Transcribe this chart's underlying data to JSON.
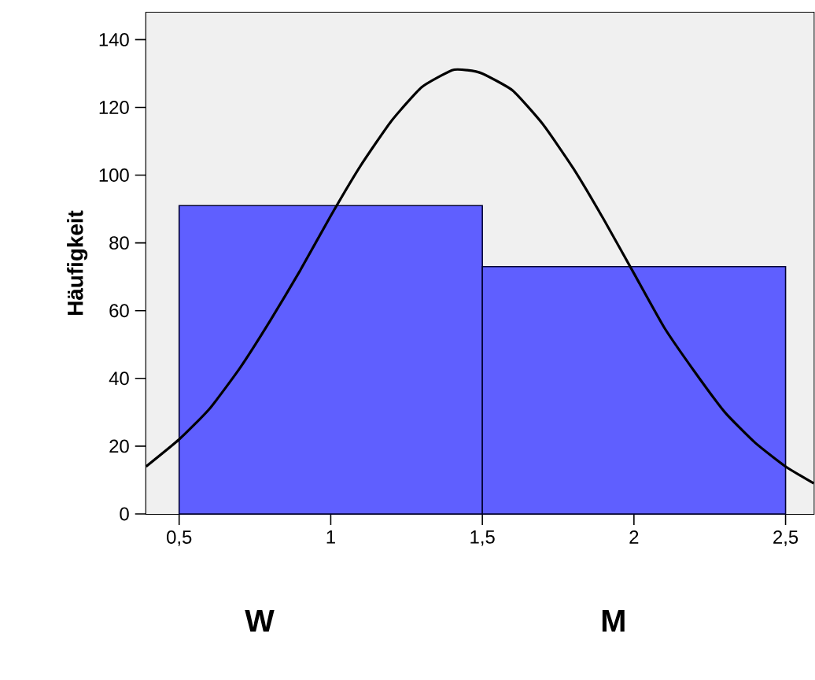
{
  "chart_data": {
    "type": "histogram",
    "ylabel": "Häufigkeit",
    "annotations": [
      "W",
      "M"
    ],
    "xlim": [
      0.391,
      2.593
    ],
    "ylim": [
      0,
      148
    ],
    "xticks": [
      {
        "value": 0.5,
        "label": "0,5"
      },
      1,
      {
        "value": 1.5,
        "label": "1,5"
      },
      2,
      {
        "value": 2.5,
        "label": "2,5"
      }
    ],
    "yticks": [
      0,
      20,
      40,
      60,
      80,
      100,
      120,
      140
    ],
    "series": [
      {
        "color": "#5f5fff",
        "bins": [
          0.5,
          1.5,
          2.5
        ],
        "values": [
          91,
          73
        ]
      },
      {
        "type": "line",
        "color": "#000000",
        "x": [
          0.391,
          0.5,
          0.6,
          0.7,
          0.8,
          0.9,
          1.0,
          1.1,
          1.2,
          1.3,
          1.4,
          1.45,
          1.5,
          1.6,
          1.7,
          1.8,
          1.9,
          2.0,
          2.1,
          2.2,
          2.3,
          2.4,
          2.5,
          2.593
        ],
        "values": [
          14,
          22,
          31,
          43,
          57,
          72,
          88,
          103,
          116,
          126,
          131,
          131,
          130,
          125,
          115,
          102,
          87,
          71,
          55,
          42,
          30,
          21,
          14,
          9
        ]
      }
    ]
  }
}
